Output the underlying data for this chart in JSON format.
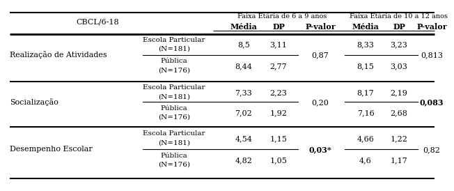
{
  "title": "CBCL/6-18",
  "col_header_1": "Faixa Etária de 6 a 9 anos",
  "col_header_2": "Faixa Etária de 10 a 12 anos",
  "sub_headers": [
    "Média",
    "DP",
    "P-valor",
    "Média",
    "DP",
    "P-valor"
  ],
  "sections": [
    {
      "label": "Realização de Atividades",
      "rows": [
        {
          "sub_label_1": "Escola Particular",
          "sub_label_2": "(N=181)",
          "m1": "8,5",
          "dp1": "3,11",
          "m2": "8,33",
          "dp2": "3,23"
        },
        {
          "sub_label_1": "Pública",
          "sub_label_2": "(N=176)",
          "m1": "8,44",
          "dp1": "2,77",
          "m2": "8,15",
          "dp2": "3,03"
        }
      ],
      "pval1": "0,87",
      "pval2": "0,813",
      "pval1_bold": false,
      "pval2_bold": false
    },
    {
      "label": "Socialização",
      "rows": [
        {
          "sub_label_1": "Escola Particular",
          "sub_label_2": "(N=181)",
          "m1": "7,33",
          "dp1": "2,23",
          "m2": "8,17",
          "dp2": "2,19"
        },
        {
          "sub_label_1": "Pública",
          "sub_label_2": "(N=176)",
          "m1": "7,02",
          "dp1": "1,92",
          "m2": "7,16",
          "dp2": "2,68"
        }
      ],
      "pval1": "0,20",
      "pval2": "0,083",
      "pval1_bold": false,
      "pval2_bold": true
    },
    {
      "label": "Desempenho Escolar",
      "rows": [
        {
          "sub_label_1": "Escola Particular",
          "sub_label_2": "(N=181)",
          "m1": "4,54",
          "dp1": "1,15",
          "m2": "4,66",
          "dp2": "1,22"
        },
        {
          "sub_label_1": "Pública",
          "sub_label_2": "(N=176)",
          "m1": "4,82",
          "dp1": "1,05",
          "m2": "4,6",
          "dp2": "1,17"
        }
      ],
      "pval1": "0,03*",
      "pval2": "0,82",
      "pval1_bold": true,
      "pval2_bold": false
    }
  ],
  "bg_color": "#ffffff",
  "text_color": "#000000",
  "font_size": 7.5
}
